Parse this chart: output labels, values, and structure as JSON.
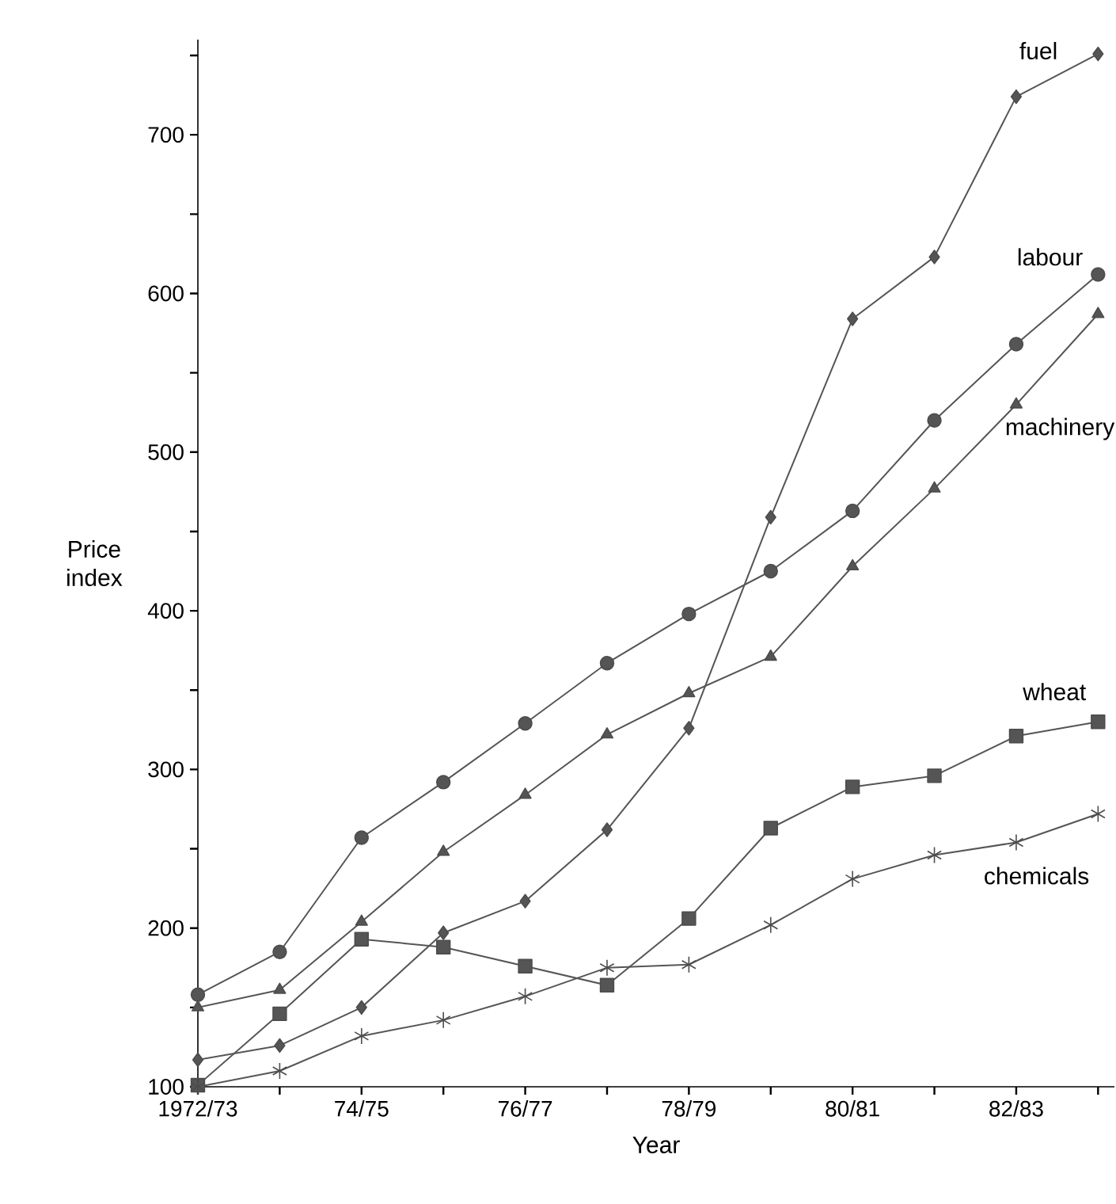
{
  "chart_data": {
    "type": "line",
    "xlabel": "Year",
    "ylabel": "Price index",
    "categories": [
      "1972/73",
      null,
      "74/75",
      null,
      "76/77",
      null,
      "78/79",
      null,
      "80/81",
      null,
      "82/83",
      null
    ],
    "ylim": [
      100,
      760
    ],
    "yticks": [
      100,
      {
        "value": 150,
        "label": null
      },
      200,
      {
        "value": 250,
        "label": null
      },
      300,
      {
        "value": 350,
        "label": null
      },
      400,
      {
        "value": 450,
        "label": null
      },
      500,
      {
        "value": 550,
        "label": null
      },
      600,
      {
        "value": 650,
        "label": null
      },
      700,
      {
        "value": 750,
        "label": null
      }
    ],
    "grid": false,
    "line_style": "solid",
    "series": [
      {
        "name": "fuel",
        "color": "#555555",
        "marker": "diamond",
        "values": [
          117,
          126,
          150,
          197,
          217,
          262,
          326,
          459,
          584,
          623,
          724,
          751
        ]
      },
      {
        "name": "labour",
        "color": "#555555",
        "marker": "circle",
        "values": [
          158,
          185,
          257,
          292,
          329,
          367,
          398,
          425,
          463,
          520,
          568,
          612
        ]
      },
      {
        "name": "machinery",
        "color": "#555555",
        "marker": "triangle",
        "values": [
          150,
          161,
          204,
          248,
          284,
          322,
          348,
          371,
          428,
          477,
          530,
          587
        ]
      },
      {
        "name": "wheat",
        "color": "#555555",
        "marker": "square",
        "values": [
          101,
          146,
          193,
          188,
          176,
          164,
          206,
          263,
          289,
          296,
          321,
          330
        ]
      },
      {
        "name": "chemicals",
        "color": "#555555",
        "marker": "cross",
        "values": [
          100,
          110,
          132,
          142,
          157,
          175,
          177,
          202,
          231,
          246,
          254,
          272
        ]
      }
    ]
  }
}
